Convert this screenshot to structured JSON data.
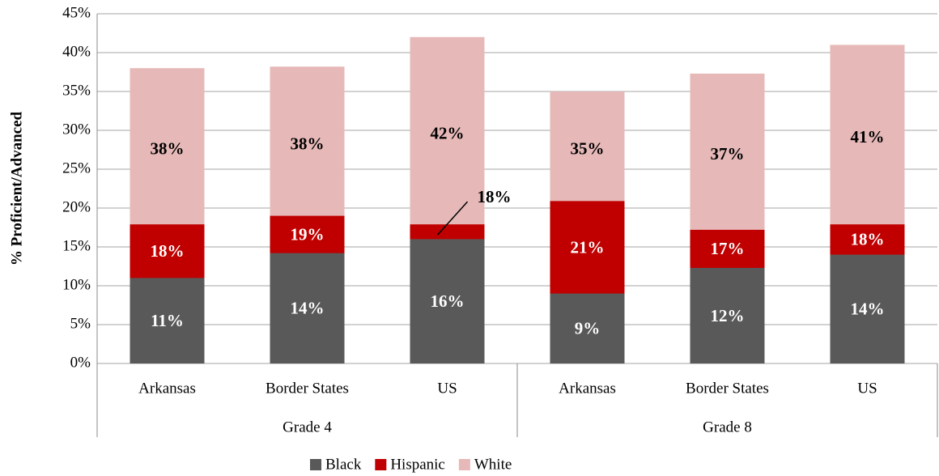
{
  "chart_data": {
    "type": "overlapping_bar",
    "ylabel": "% Proficient/Advanced",
    "categories": [
      "Arkansas",
      "Border States",
      "US",
      "Arkansas",
      "Border States",
      "US"
    ],
    "groups": [
      "Grade 4",
      "Grade 8"
    ],
    "series": [
      {
        "name": "White",
        "color": "#e6b9b8",
        "label_color": "#000000",
        "values": [
          38,
          38.2,
          42,
          35,
          37.3,
          41
        ],
        "value_labels": [
          "38%",
          "38%",
          "42%",
          "35%",
          "37%",
          "41%"
        ]
      },
      {
        "name": "Hispanic",
        "color": "#c00000",
        "label_color": "#ffffff",
        "values": [
          17.9,
          19,
          17.9,
          20.9,
          17.2,
          17.9
        ],
        "value_labels": [
          "18%",
          "19%",
          "18%",
          "21%",
          "17%",
          "18%"
        ]
      },
      {
        "name": "Black",
        "color": "#595959",
        "label_color": "#ffffff",
        "values": [
          11,
          14.2,
          16,
          9,
          12.3,
          14
        ],
        "value_labels": [
          "11%",
          "14%",
          "16%",
          "9%",
          "12%",
          "14%"
        ]
      }
    ],
    "legend_order": [
      "Black",
      "Hispanic",
      "White"
    ],
    "ylim": [
      0,
      45
    ],
    "yticks": [
      {
        "value": 0,
        "label": "0%"
      },
      {
        "value": 5,
        "label": "5%"
      },
      {
        "value": 10,
        "label": "10%"
      },
      {
        "value": 15,
        "label": "15%"
      },
      {
        "value": 20,
        "label": "20%"
      },
      {
        "value": 25,
        "label": "25%"
      },
      {
        "value": 30,
        "label": "30%"
      },
      {
        "value": 35,
        "label": "35%"
      },
      {
        "value": 40,
        "label": "40%"
      },
      {
        "value": 45,
        "label": "45%"
      }
    ],
    "grid": true
  }
}
